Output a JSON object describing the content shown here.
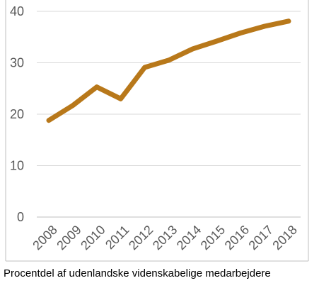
{
  "caption": "Procentdel af udenlandske videnskabelige medarbejdere",
  "colors": {
    "series": "#b8781a",
    "grid": "#d9d9d9",
    "frame": "#bfbfbf",
    "tick_text": "#595959"
  },
  "chart_data": {
    "type": "line",
    "title": "",
    "xlabel": "",
    "ylabel": "",
    "x": [
      "2008",
      "2009",
      "2010",
      "2011",
      "2012",
      "2013",
      "2014",
      "2015",
      "2016",
      "2017",
      "2018"
    ],
    "series": [
      {
        "values": [
          18.8,
          21.7,
          25.3,
          23.0,
          29.1,
          30.5,
          32.7,
          34.2,
          35.8,
          37.1,
          38.1
        ]
      }
    ],
    "ylim": [
      0,
      40
    ],
    "yticks": [
      "0",
      "10",
      "20",
      "30",
      "40"
    ],
    "grid": true,
    "legend": "none"
  }
}
